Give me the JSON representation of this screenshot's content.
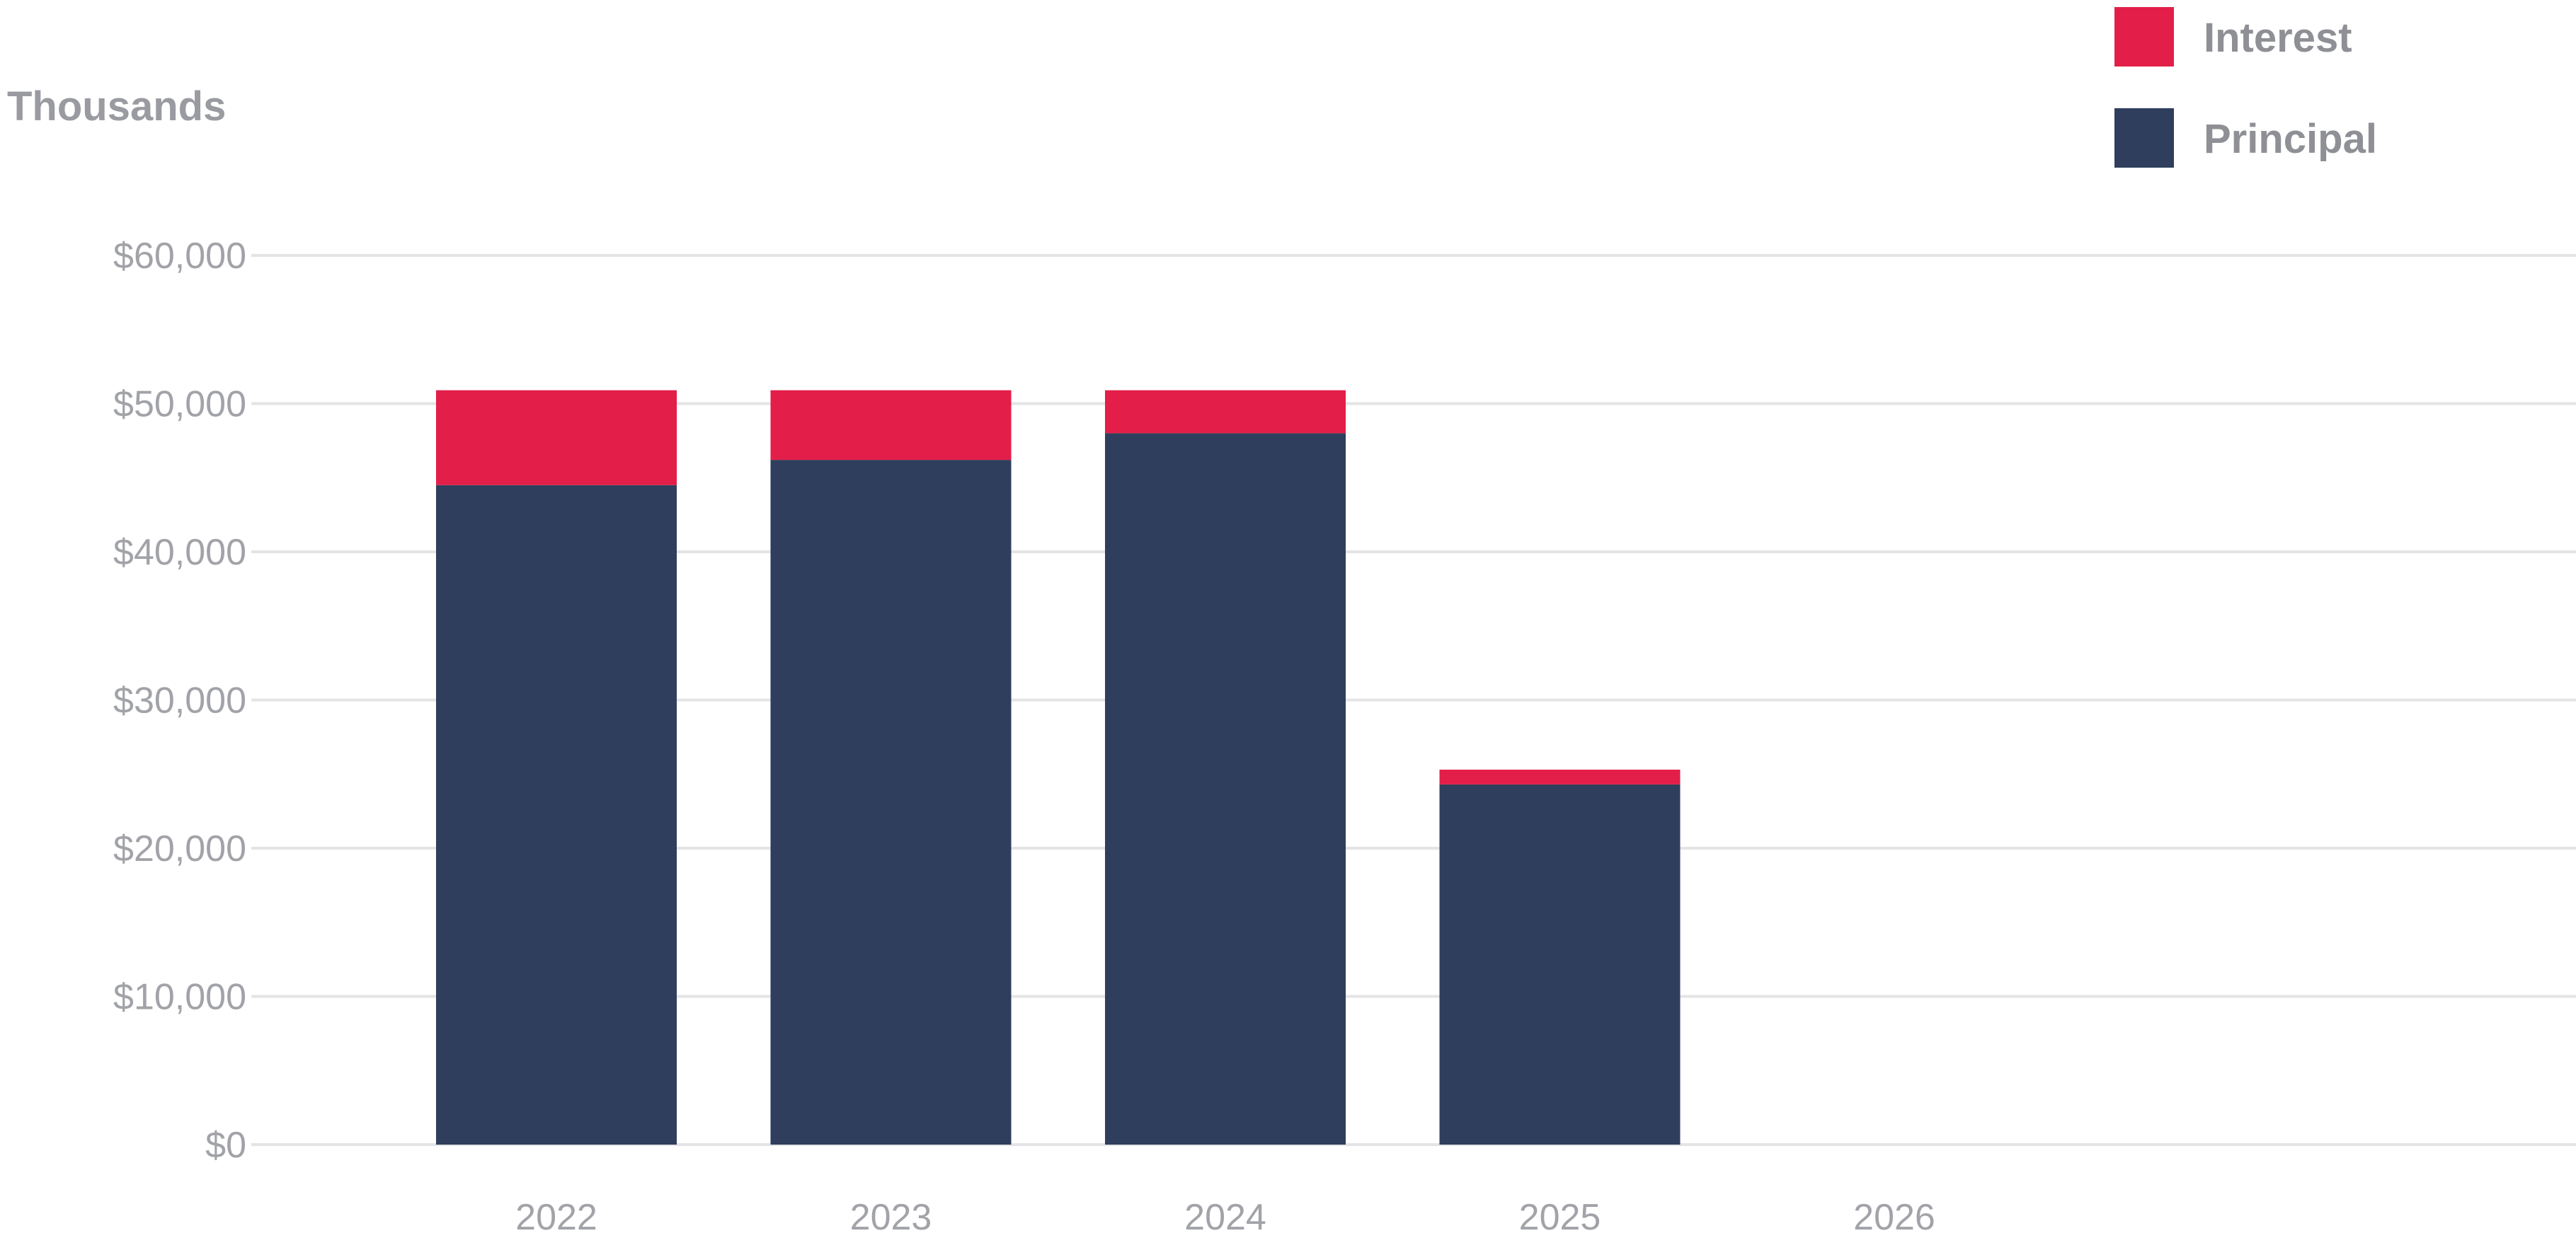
{
  "chart_data": {
    "type": "bar",
    "stacked": true,
    "unit_label": "Thousands",
    "categories": [
      "2022",
      "2023",
      "2024",
      "2025",
      "2026"
    ],
    "series": [
      {
        "name": "Principal",
        "color": "#2f3e5c",
        "values": [
          44500,
          46200,
          48000,
          24300,
          0
        ]
      },
      {
        "name": "Interest",
        "color": "#e31e48",
        "values": [
          6400,
          4700,
          2900,
          1000,
          0
        ]
      }
    ],
    "y_ticks": [
      "$0",
      "$10,000",
      "$20,000",
      "$30,000",
      "$40,000",
      "$50,000",
      "$60,000"
    ],
    "ylim": [
      0,
      60000
    ],
    "y_step": 10000,
    "grid": true,
    "legend": {
      "position": "top-right",
      "items": [
        {
          "label": "Interest",
          "color": "#e31e48"
        },
        {
          "label": "Principal",
          "color": "#2f3e5c"
        }
      ]
    }
  }
}
